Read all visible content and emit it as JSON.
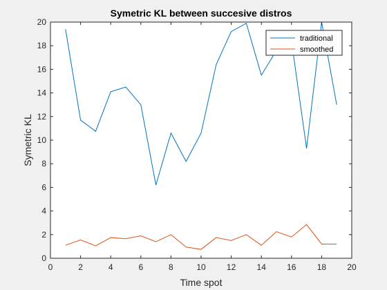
{
  "chart_data": {
    "type": "line",
    "title": "Symetric KL between succesive distros",
    "xlabel": "Time spot",
    "ylabel": "Symetric KL",
    "xlim": [
      0,
      20
    ],
    "ylim": [
      0,
      20
    ],
    "xticks": [
      0,
      2,
      4,
      6,
      8,
      10,
      12,
      14,
      16,
      18,
      20
    ],
    "yticks": [
      0,
      2,
      4,
      6,
      8,
      10,
      12,
      14,
      16,
      18,
      20
    ],
    "grid": false,
    "legend_position": "top-right",
    "x": [
      1,
      2,
      3,
      4,
      5,
      6,
      7,
      8,
      9,
      10,
      11,
      12,
      13,
      14,
      15,
      16,
      17,
      18,
      19
    ],
    "series": [
      {
        "name": "traditional",
        "color": "#0072bd",
        "values": [
          19.4,
          11.7,
          10.75,
          14.1,
          14.5,
          13.0,
          6.2,
          10.6,
          8.2,
          10.6,
          16.4,
          19.2,
          19.9,
          15.5,
          17.6,
          18.4,
          9.3,
          20.0,
          13.0
        ]
      },
      {
        "name": "smoothed",
        "color": "#d95319",
        "values": [
          1.1,
          1.55,
          1.05,
          1.75,
          1.65,
          1.9,
          1.4,
          2.0,
          0.95,
          0.75,
          1.75,
          1.5,
          2.0,
          1.1,
          2.25,
          1.8,
          2.85,
          1.2,
          1.2
        ]
      }
    ]
  }
}
